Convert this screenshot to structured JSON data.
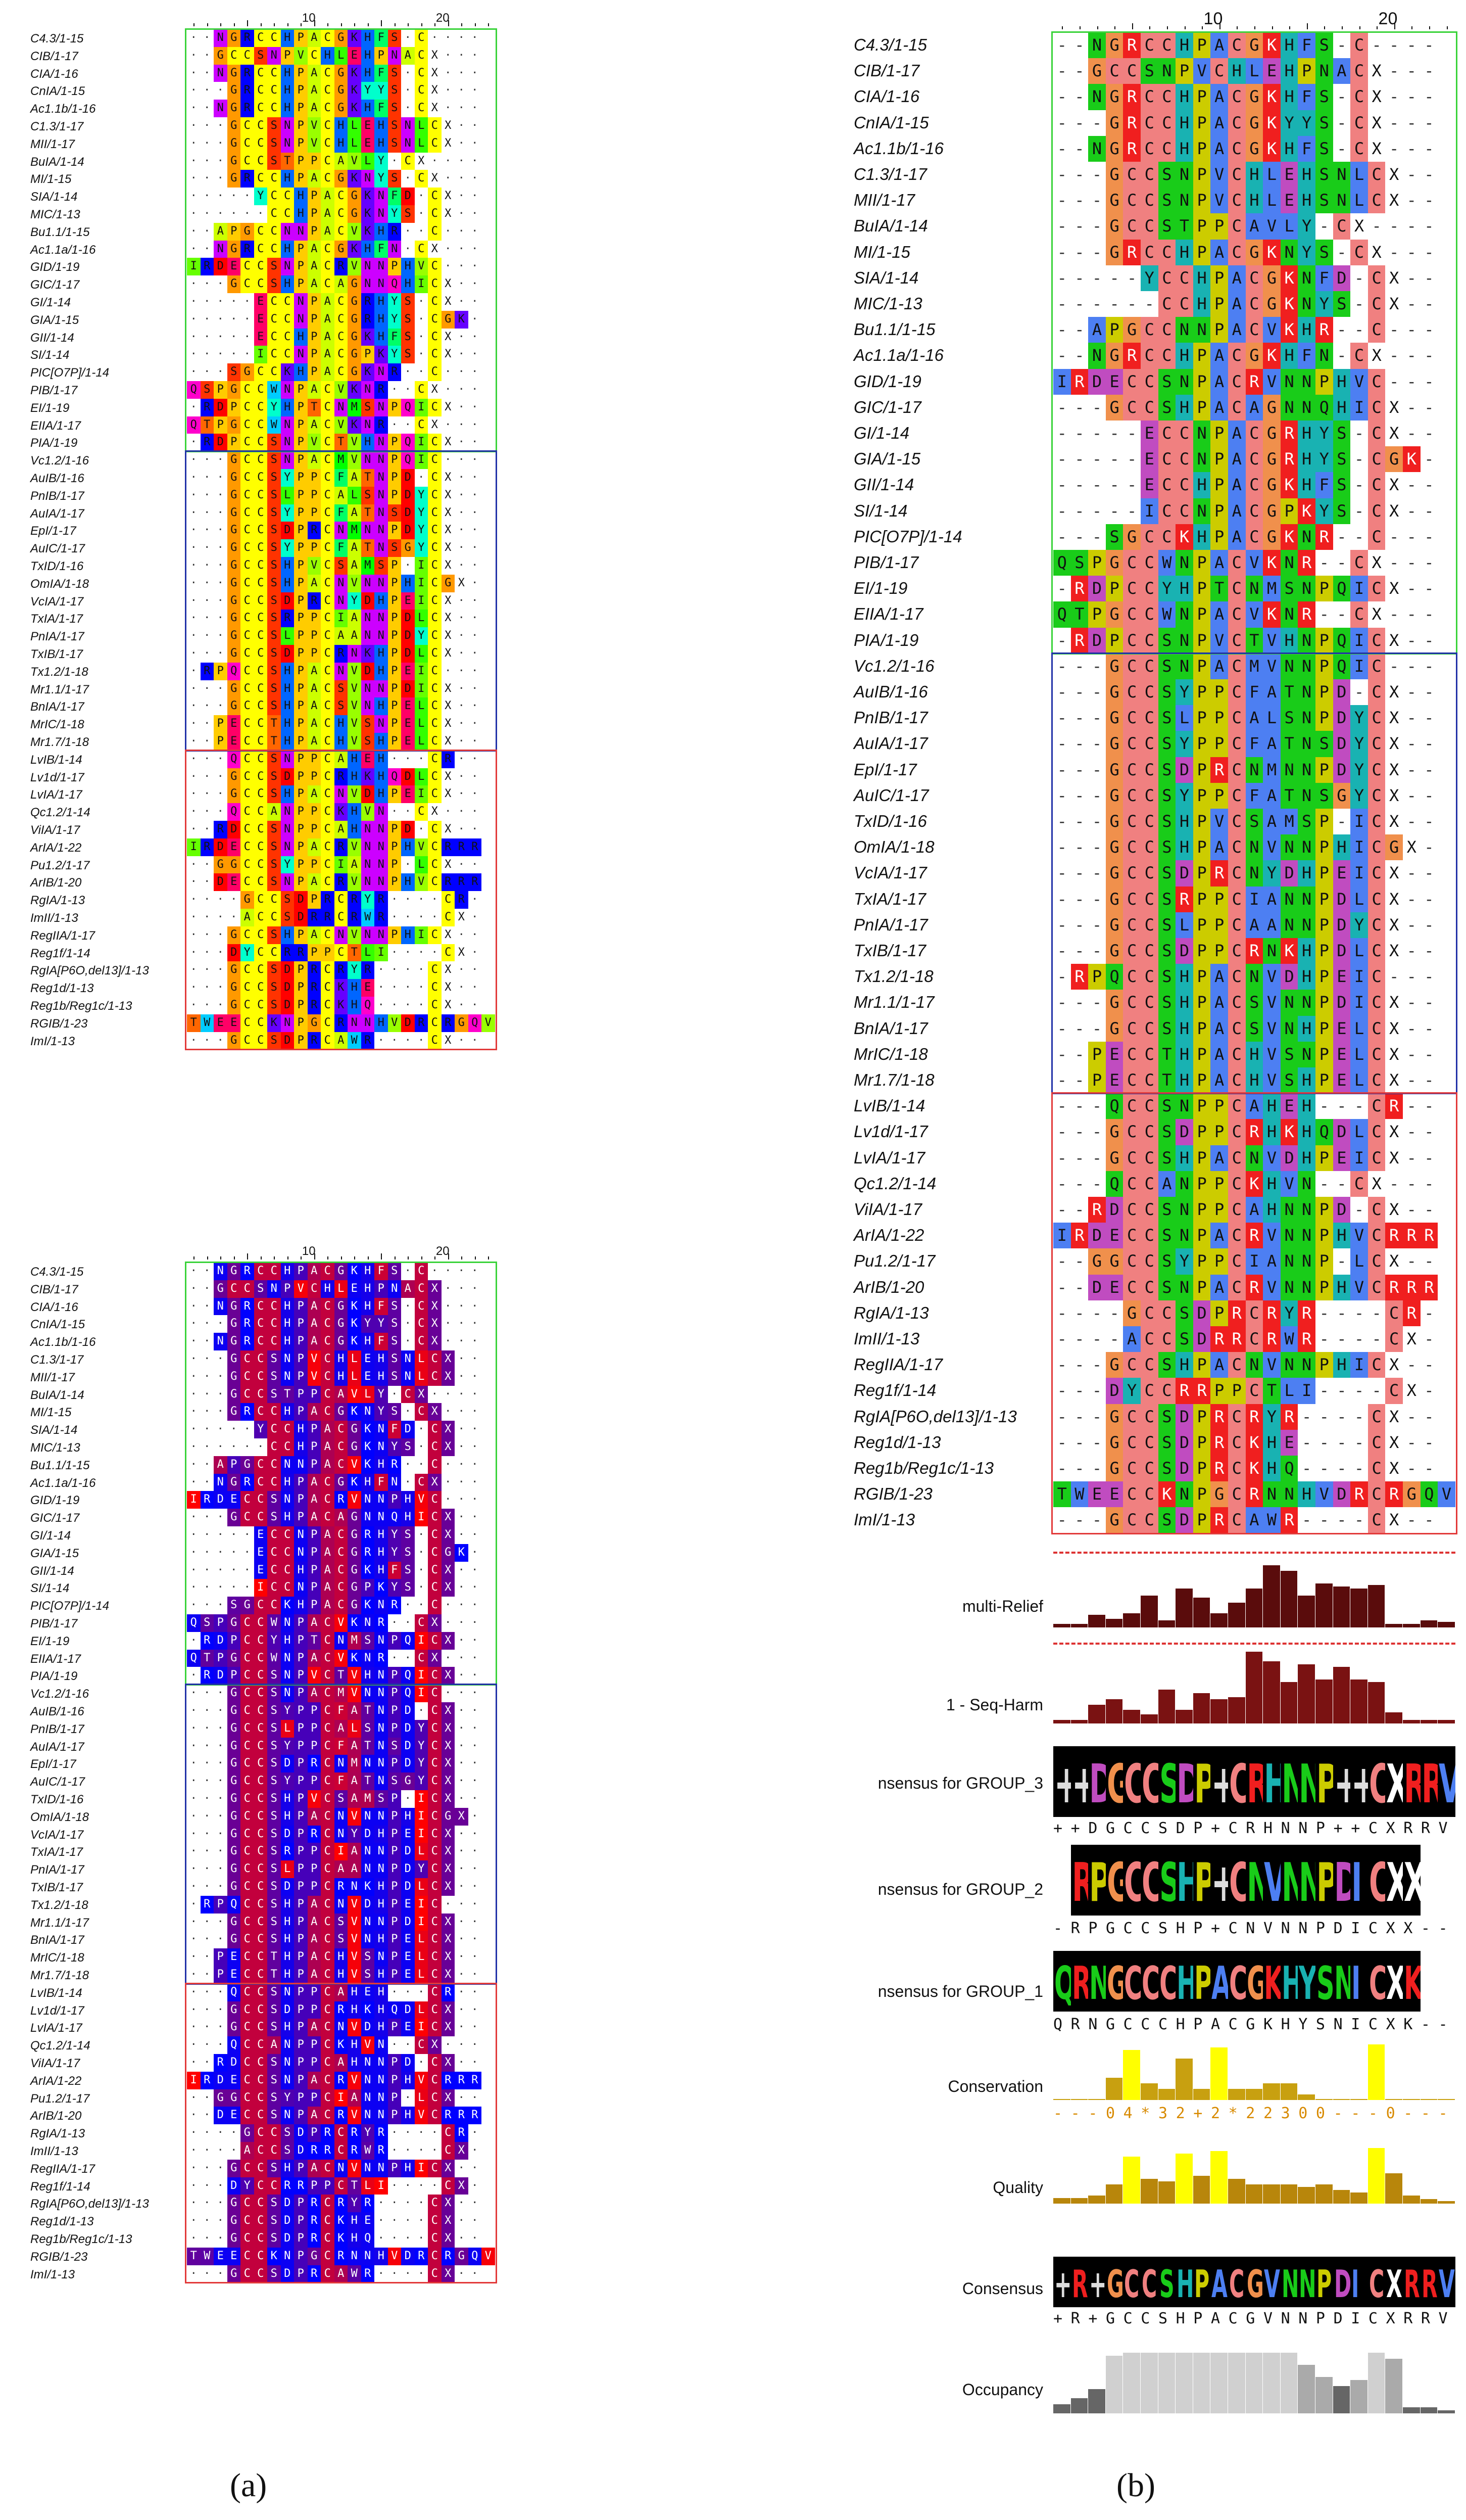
{
  "figure": {
    "caption_a": "(a)",
    "caption_b": "(b)",
    "ruler_ticks": [
      "10",
      "20"
    ]
  },
  "sequences": [
    {
      "name": "C4.3/1-15",
      "seq": "--NGRCCHPACGKHFS-C----",
      "group": 1
    },
    {
      "name": "CIB/1-17",
      "seq": "--GCCSNPVCHLEHPNACX---",
      "group": 1
    },
    {
      "name": "CIA/1-16",
      "seq": "--NGRCCHPACGKHFS-CX---",
      "group": 1
    },
    {
      "name": "CnIA/1-15",
      "seq": "---GRCCHPACGKYYS-CX---",
      "group": 1
    },
    {
      "name": "Ac1.1b/1-16",
      "seq": "--NGRCCHPACGKHFS-CX---",
      "group": 1
    },
    {
      "name": "C1.3/1-17",
      "seq": "---GCCSNPVCHLEHSNLCX--",
      "group": 1
    },
    {
      "name": "MII/1-17",
      "seq": "---GCCSNPVCHLEHSNLCX--",
      "group": 1
    },
    {
      "name": "BuIA/1-14",
      "seq": "---GCCSTPPCAVLY-CX----",
      "group": 1
    },
    {
      "name": "MI/1-15",
      "seq": "---GRCCHPACGKNYS-CX---",
      "group": 1
    },
    {
      "name": "SIA/1-14",
      "seq": "-----YCCHPACGKNFD-CX--",
      "group": 1
    },
    {
      "name": "MIC/1-13",
      "seq": "------CCHPACGKNYS-CX--",
      "group": 1
    },
    {
      "name": "Bu1.1/1-15",
      "seq": "--APGCCNNPACVKHR--C---",
      "group": 1
    },
    {
      "name": "Ac1.1a/1-16",
      "seq": "--NGRCCHPACGKHFN-CX---",
      "group": 1
    },
    {
      "name": "GID/1-19",
      "seq": "IRDECCSNPACRVNNPHVC---",
      "group": 1
    },
    {
      "name": "GIC/1-17",
      "seq": "---GCCSHPACAGNNQHICX--",
      "group": 1
    },
    {
      "name": "GI/1-14",
      "seq": "-----ECCNPACGRHYS-CX--",
      "group": 1
    },
    {
      "name": "GIA/1-15",
      "seq": "-----ECCNPACGRHYS-CGK-",
      "group": 1
    },
    {
      "name": "GII/1-14",
      "seq": "-----ECCHPACGKHFS-CX--",
      "group": 1
    },
    {
      "name": "SI/1-14",
      "seq": "-----ICCNPACGPKYS-CX--",
      "group": 1
    },
    {
      "name": "PIC[O7P]/1-14",
      "seq": "---SGCCKHPACGKNR--C---",
      "group": 1
    },
    {
      "name": "PIB/1-17",
      "seq": "QSPGCCWNPACVKNR--CX---",
      "group": 1
    },
    {
      "name": "EI/1-19",
      "seq": "-RDPCCYHPTCNMSNPQICX--",
      "group": 1
    },
    {
      "name": "EIIA/1-17",
      "seq": "QTPGCCWNPACVKNR--CX---",
      "group": 1
    },
    {
      "name": "PIA/1-19",
      "seq": "-RDPCCSNPVCTVHNPQICX--",
      "group": 1
    },
    {
      "name": "Vc1.2/1-16",
      "seq": "---GCCSNPACMVNNPQIC---",
      "group": 2
    },
    {
      "name": "AuIB/1-16",
      "seq": "---GCCSYPPCFATNPD-CX--",
      "group": 2
    },
    {
      "name": "PnIB/1-17",
      "seq": "---GCCSLPPCALSNPDYCX--",
      "group": 2
    },
    {
      "name": "AuIA/1-17",
      "seq": "---GCCSYPPCFATNSDYCX--",
      "group": 2
    },
    {
      "name": "EpI/1-17",
      "seq": "---GCCSDPRCNMNNPDYCX--",
      "group": 2
    },
    {
      "name": "AuIC/1-17",
      "seq": "---GCCSYPPCFATNSGYCX--",
      "group": 2
    },
    {
      "name": "TxID/1-16",
      "seq": "---GCCSHPVCSAMSP-ICX--",
      "group": 2
    },
    {
      "name": "OmIA/1-18",
      "seq": "---GCCSHPACNVNNPHICGX-",
      "group": 2
    },
    {
      "name": "VcIA/1-17",
      "seq": "---GCCSDPRCNYDHPEICX--",
      "group": 2
    },
    {
      "name": "TxIA/1-17",
      "seq": "---GCCSRPPCIANNPDLCX--",
      "group": 2
    },
    {
      "name": "PnIA/1-17",
      "seq": "---GCCSLPPCAANNPDYCX--",
      "group": 2
    },
    {
      "name": "TxIB/1-17",
      "seq": "---GCCSDPPCRNKHPDLCX--",
      "group": 2
    },
    {
      "name": "Tx1.2/1-18",
      "seq": "-RPQCCSHPACNVDHPEIC---",
      "group": 2
    },
    {
      "name": "Mr1.1/1-17",
      "seq": "---GCCSHPACSVNNPDICX--",
      "group": 2
    },
    {
      "name": "BnIA/1-17",
      "seq": "---GCCSHPACSVNHPELCX--",
      "group": 2
    },
    {
      "name": "MrIC/1-18",
      "seq": "--PECCTHPACHVSNPELCX--",
      "group": 2
    },
    {
      "name": "Mr1.7/1-18",
      "seq": "--PECCTHPACHVSHPELCX--",
      "group": 2
    },
    {
      "name": "LvIB/1-14",
      "seq": "---QCCSNPPCAHEH---CR--",
      "group": 3
    },
    {
      "name": "Lv1d/1-17",
      "seq": "---GCCSDPPCRHKHQDLCX--",
      "group": 3
    },
    {
      "name": "LvIA/1-17",
      "seq": "---GCCSHPACNVDHPEICX--",
      "group": 3
    },
    {
      "name": "Qc1.2/1-14",
      "seq": "---QCCANPPCKHVN--CX---",
      "group": 3
    },
    {
      "name": "ViIA/1-17",
      "seq": "--RDCCSNPPCAHNNPD-CX--",
      "group": 3
    },
    {
      "name": "ArIA/1-22",
      "seq": "IRDECCSNPACRVNNPHVCRRR",
      "group": 3
    },
    {
      "name": "Pu1.2/1-17",
      "seq": "--GGCCSYPPCIANNP-LCX--",
      "group": 3
    },
    {
      "name": "ArIB/1-20",
      "seq": "--DECCSNPACRVNNPHVCRRR",
      "group": 3
    },
    {
      "name": "RgIA/1-13",
      "seq": "----GCCSDPRCRYR----CR-",
      "group": 3
    },
    {
      "name": "ImII/1-13",
      "seq": "----ACCSDRRCRWR----CX-",
      "group": 3
    },
    {
      "name": "RegIIA/1-17",
      "seq": "---GCCSHPACNVNNPHICX--",
      "group": 3
    },
    {
      "name": "Reg1f/1-14",
      "seq": "---DYCCRRPPCTLI----CX-",
      "group": 3
    },
    {
      "name": "RgIA[P6O,del13]/1-13",
      "seq": "---GCCSDPRCRYR----CX--",
      "group": 3
    },
    {
      "name": "Reg1d/1-13",
      "seq": "---GCCSDPRCKHE----CX--",
      "group": 3
    },
    {
      "name": "Reg1b/Reg1c/1-13",
      "seq": "---GCCSDPRCKHQ----CX--",
      "group": 3
    },
    {
      "name": "RGIB/1-23",
      "seq": "TWEECCKNPGCRNNHVDRCRGQV",
      "group": 3
    },
    {
      "name": "ImI/1-13",
      "seq": "---GCCSDPRCAWR----CX--",
      "group": 3
    }
  ],
  "group_colors": {
    "group1": "#3ad33a",
    "group2": "#2232a8",
    "group3": "#e23a3a"
  },
  "annotations": {
    "labels": {
      "multi_relief": "multi-Relief",
      "seq_harm": "1 - Seq-Harm",
      "consensus_g3": "nsensus for GROUP_3",
      "consensus_g2": "nsensus for GROUP_2",
      "consensus_g1": "nsensus for GROUP_1",
      "conservation": "Conservation",
      "quality": "Quality",
      "consensus": "Consensus",
      "occupancy": "Occupancy"
    },
    "consensus_g3_seq": "++DGCCSDP+CRHNNP++CXRRV",
    "consensus_g2_seq": "-RPGCCSHP+CNVNNPDICXX--",
    "consensus_g1_seq": "QRNGCCCHPACGKHYSNICXK--",
    "conservation_seq": "---04*32+2*22300---0---",
    "consensus_seq": "+R+GCCSHPACGVNNPDICXRRV",
    "multi_relief_values": [
      0.05,
      0.05,
      0.18,
      0.12,
      0.2,
      0.45,
      0.1,
      0.55,
      0.42,
      0.2,
      0.35,
      0.55,
      0.88,
      0.8,
      0.45,
      0.62,
      0.58,
      0.55,
      0.6,
      0.05,
      0.05,
      0.1,
      0.08
    ],
    "seq_harm_values": [
      0.05,
      0.05,
      0.25,
      0.32,
      0.18,
      0.12,
      0.45,
      0.18,
      0.4,
      0.32,
      0.35,
      0.95,
      0.82,
      0.55,
      0.78,
      0.58,
      0.75,
      0.58,
      0.55,
      0.15,
      0.05,
      0.05,
      0.05
    ],
    "conservation_values": [
      0,
      0,
      0,
      0.4,
      0.9,
      0.3,
      0.2,
      0.75,
      0.2,
      0.95,
      0.2,
      0.2,
      0.3,
      0.3,
      0.1,
      0,
      0,
      0,
      1.0,
      0,
      0,
      0,
      0
    ],
    "quality_values": [
      0.1,
      0.1,
      0.15,
      0.35,
      0.85,
      0.45,
      0.4,
      0.9,
      0.5,
      0.95,
      0.45,
      0.35,
      0.35,
      0.35,
      0.3,
      0.35,
      0.25,
      0.2,
      1.0,
      0.55,
      0.15,
      0.08,
      0.05
    ],
    "occupancy_values": [
      0.15,
      0.25,
      0.4,
      0.95,
      1,
      1,
      1,
      1,
      1,
      1,
      1,
      1,
      1,
      1,
      0.8,
      0.6,
      0.45,
      0.55,
      1,
      0.9,
      0.1,
      0.1,
      0.05
    ]
  }
}
